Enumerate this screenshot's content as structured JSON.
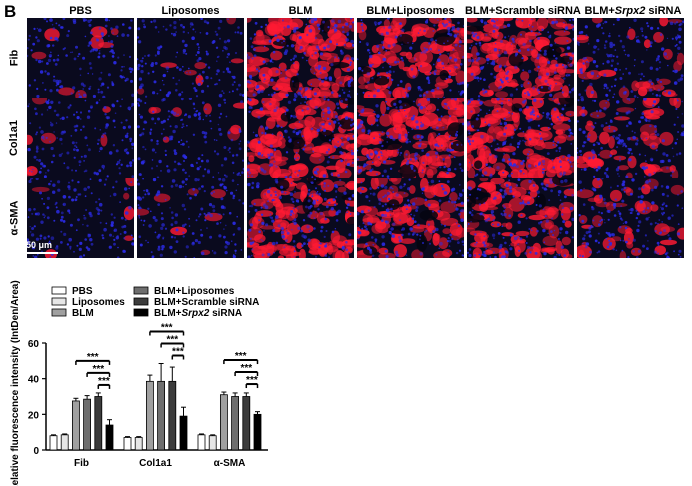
{
  "panel_label": "B",
  "figure": {
    "column_headers": [
      "PBS",
      "Liposomes",
      "BLM",
      "BLM+Liposomes",
      "BLM+Scramble siRNA",
      "BLM+Srpx2 siRNA"
    ],
    "row_headers": [
      "Fib",
      "Col1a1",
      "α-SMA"
    ],
    "scale_bar_label": "50 μm",
    "tile_intensity": [
      [
        0.06,
        0.05,
        0.85,
        0.75,
        0.8,
        0.22
      ],
      [
        0.05,
        0.06,
        0.8,
        0.85,
        0.9,
        0.35
      ],
      [
        0.04,
        0.05,
        0.75,
        0.55,
        0.6,
        0.25
      ]
    ],
    "colors": {
      "nuclei_blue": "#2b2be6",
      "stain_red": "#ff1a33",
      "background_dark": "#0a0a1e"
    }
  },
  "chart_data": {
    "type": "bar",
    "ylabel": "Relative fluorescence intensity (IntDen/Area)",
    "ylim": [
      0,
      60
    ],
    "yticks": [
      0,
      20,
      40,
      60
    ],
    "categories": [
      "Fib",
      "Col1a1",
      "α-SMA"
    ],
    "series": [
      {
        "name": "PBS",
        "values": [
          8,
          7,
          8.5
        ],
        "errors": [
          0.5,
          0.5,
          0.5
        ],
        "fill": "#ffffff"
      },
      {
        "name": "Liposomes",
        "values": [
          8.5,
          7,
          8
        ],
        "errors": [
          0.5,
          0.5,
          0.5
        ],
        "fill": "#e6e6e6"
      },
      {
        "name": "BLM",
        "values": [
          27.5,
          38.5,
          31
        ],
        "errors": [
          1.5,
          3.5,
          1.5
        ],
        "fill": "#a0a0a0"
      },
      {
        "name": "BLM+Liposomes",
        "values": [
          28.5,
          38.5,
          30
        ],
        "errors": [
          2,
          10,
          2
        ],
        "fill": "#6e6e6e"
      },
      {
        "name": "BLM+Scramble siRNA",
        "values": [
          30,
          38.5,
          30
        ],
        "errors": [
          2,
          8,
          2
        ],
        "fill": "#3c3c3c"
      },
      {
        "name": "BLM+Srpx2 siRNA",
        "name_prefix": "BLM+",
        "name_italic": "Srpx2",
        "name_suffix": " siRNA",
        "values": [
          14,
          19,
          20
        ],
        "errors": [
          3,
          5,
          1.5
        ],
        "fill": "#000000"
      }
    ],
    "significance": [
      {
        "label": "***",
        "from_series": 2,
        "to_series": 5
      },
      {
        "label": "***",
        "from_series": 3,
        "to_series": 5
      },
      {
        "label": "***",
        "from_series": 4,
        "to_series": 5
      }
    ],
    "legend_placement": "top-left",
    "grid": false
  }
}
